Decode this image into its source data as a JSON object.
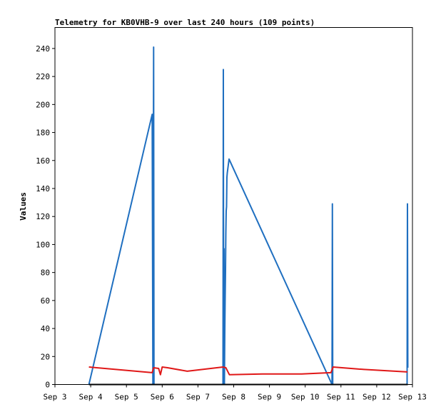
{
  "chart_data": {
    "type": "line",
    "title": "Telemetry for KB0VHB-9 over last 240 hours (109 points)",
    "xlabel": "",
    "ylabel": "Values",
    "x_axis": {
      "type": "date",
      "ticks": [
        "Sep 3",
        "Sep 4",
        "Sep 5",
        "Sep 6",
        "Sep 7",
        "Sep 8",
        "Sep 9",
        "Sep 10",
        "Sep 11",
        "Sep 12",
        "Sep 13"
      ],
      "xlim": [
        3.0,
        13.0
      ]
    },
    "y_axis": {
      "ticks": [
        0,
        20,
        40,
        60,
        80,
        100,
        120,
        140,
        160,
        180,
        200,
        220,
        240
      ],
      "ylim": [
        0,
        255
      ]
    },
    "grid": false,
    "legend": "none",
    "series": [
      {
        "color": "#1f6fc0",
        "points": [
          [
            3.95,
            0
          ],
          [
            5.72,
            193
          ],
          [
            5.74,
            0
          ],
          [
            5.76,
            241
          ],
          [
            5.77,
            0
          ],
          [
            7.7,
            0
          ],
          [
            7.71,
            225
          ],
          [
            7.72,
            0
          ],
          [
            7.73,
            97
          ],
          [
            7.74,
            0
          ],
          [
            7.75,
            36
          ],
          [
            7.76,
            60
          ],
          [
            7.77,
            80
          ],
          [
            7.78,
            108
          ],
          [
            7.79,
            124
          ],
          [
            7.8,
            127
          ],
          [
            7.81,
            148
          ],
          [
            7.82,
            151
          ],
          [
            7.87,
            161
          ],
          [
            10.75,
            0
          ],
          [
            10.76,
            129
          ],
          [
            10.77,
            0
          ],
          [
            12.85,
            0
          ],
          [
            12.86,
            129
          ],
          [
            12.87,
            12
          ]
        ]
      },
      {
        "color": "#e01818",
        "points": [
          [
            3.95,
            12.5
          ],
          [
            5.72,
            8.5
          ],
          [
            5.76,
            12
          ],
          [
            5.9,
            11.5
          ],
          [
            5.95,
            7
          ],
          [
            6.0,
            12.5
          ],
          [
            6.15,
            12
          ],
          [
            6.7,
            9.5
          ],
          [
            7.7,
            12.5
          ],
          [
            7.78,
            12
          ],
          [
            7.88,
            7
          ],
          [
            8.8,
            7.5
          ],
          [
            9.9,
            7.5
          ],
          [
            10.72,
            8.5
          ],
          [
            10.78,
            12.5
          ],
          [
            11.5,
            11
          ],
          [
            12.86,
            9
          ]
        ]
      },
      {
        "color": "#000000",
        "points": [
          [
            3.95,
            0
          ],
          [
            12.87,
            0
          ]
        ]
      }
    ]
  }
}
